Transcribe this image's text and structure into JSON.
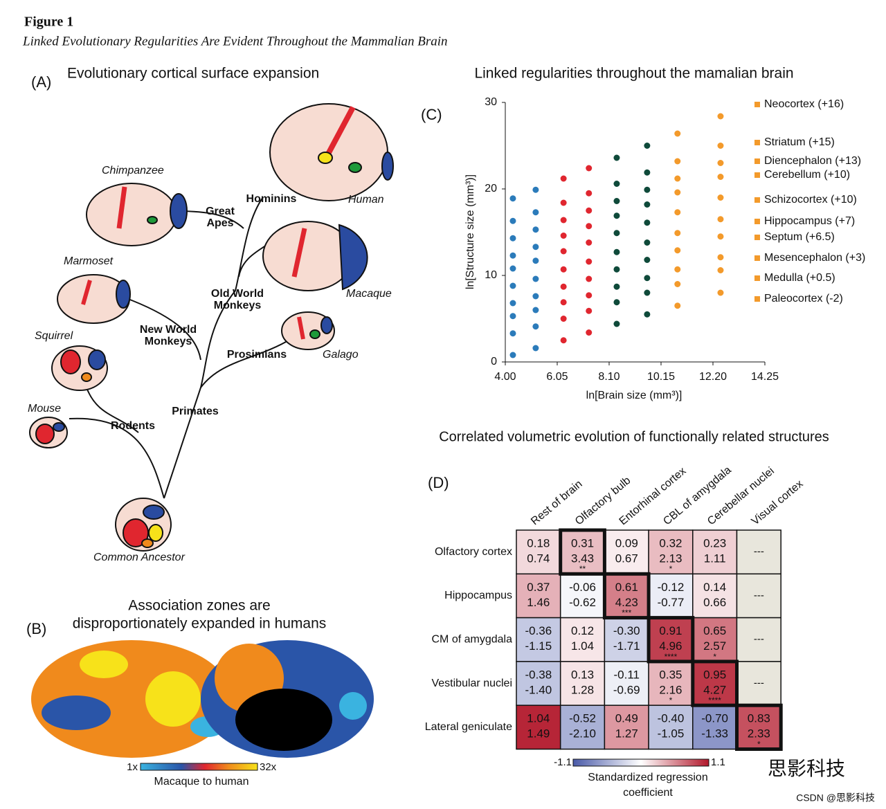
{
  "header": {
    "title": "Figure 1",
    "subtitle": "Linked Evolutionary Regularities Are Evident Throughout the Mammalian Brain"
  },
  "panel_a": {
    "label": "(A)",
    "title": "Evolutionary cortical surface expansion",
    "species": [
      "Chimpanzee",
      "Human",
      "Marmoset",
      "Macaque",
      "Squirrel",
      "Galago",
      "Mouse",
      "Common Ancestor"
    ],
    "clades": [
      [
        "Hominins"
      ],
      [
        "Great",
        "Apes"
      ],
      [
        "Old World",
        "Monkeys"
      ],
      [
        "New World",
        "Monkeys"
      ],
      [
        "Prosimians"
      ],
      [
        "Primates"
      ],
      [
        "Rodents"
      ]
    ]
  },
  "panel_b": {
    "label": "(B)",
    "title": [
      "Association zones are",
      "disproportionately expanded in humans"
    ],
    "scale_min": "1x",
    "scale_max": "32x",
    "scale_title": "Macaque to human"
  },
  "chart_data": {
    "type": "scatter",
    "label": "(C)",
    "title": "Linked regularities throughout the mamalian brain",
    "x_label": "ln[Brain size (mm³)]",
    "y_label": "ln[Structure size (mm³)]",
    "xlim": [
      4.0,
      14.25
    ],
    "ylim": [
      0,
      30
    ],
    "xticks": [
      {
        "value": 4,
        "label": "4.00"
      },
      {
        "value": 6.05,
        "label": "6.05"
      },
      {
        "value": 8.1,
        "label": "8.10"
      },
      {
        "value": 10.15,
        "label": "10.15"
      },
      {
        "value": 12.2,
        "label": "12.20"
      },
      {
        "value": 14.25,
        "label": "14.25"
      }
    ],
    "yticks": [
      0,
      10,
      20,
      30
    ],
    "x": [
      4.3,
      5.2,
      6.3,
      7.3,
      8.4,
      9.6,
      10.8,
      12.5
    ],
    "point_colors": [
      "#2b7bba",
      "#2b7bba",
      "#e0262f",
      "#e0262f",
      "#0f4a3a",
      "#0f4a3a",
      "#f39a2b",
      "#f39a2b"
    ],
    "series": [
      {
        "name": "Neocortex (+16)",
        "color": "#f39a2b",
        "values": [
          18.9,
          19.9,
          21.2,
          22.4,
          23.6,
          25.0,
          26.4,
          28.4
        ]
      },
      {
        "name": "Striatum (+15)",
        "color": "#f39a2b",
        "values": [
          16.3,
          17.3,
          18.4,
          19.5,
          20.6,
          21.9,
          23.2,
          25.0
        ]
      },
      {
        "name": "Diencephalon (+13)",
        "color": "#f39a2b",
        "values": [
          14.3,
          15.3,
          16.4,
          17.5,
          18.6,
          19.9,
          21.2,
          23.0
        ]
      },
      {
        "name": "Cerebellum (+10)",
        "color": "#f39a2b",
        "values": [
          12.3,
          13.3,
          14.6,
          15.7,
          16.9,
          18.2,
          19.6,
          21.4
        ]
      },
      {
        "name": "Schizocortex (+10)",
        "color": "#f39a2b",
        "values": [
          10.8,
          11.7,
          12.8,
          13.8,
          14.9,
          16.1,
          17.3,
          19.0
        ]
      },
      {
        "name": "Hippocampus (+7)",
        "color": "#f39a2b",
        "values": [
          8.8,
          9.6,
          10.7,
          11.6,
          12.7,
          13.8,
          14.9,
          16.5
        ]
      },
      {
        "name": "Septum (+6.5)",
        "color": "#f39a2b",
        "values": [
          6.8,
          7.6,
          8.7,
          9.6,
          10.7,
          11.8,
          12.9,
          14.5
        ]
      },
      {
        "name": "Mesencephalon (+3)",
        "color": "#f39a2b",
        "values": [
          5.3,
          6.0,
          6.9,
          7.7,
          8.7,
          9.7,
          10.7,
          12.1
        ]
      },
      {
        "name": "Medulla (+0.5)",
        "color": "#f39a2b",
        "values": [
          3.3,
          4.1,
          5.0,
          5.9,
          6.9,
          8.0,
          9.0,
          10.6
        ]
      },
      {
        "name": "Paleocortex (-2)",
        "color": "#f39a2b",
        "values": [
          0.8,
          1.6,
          2.5,
          3.4,
          4.4,
          5.5,
          6.5,
          8.0
        ]
      }
    ]
  },
  "panel_d": {
    "title": "Correlated volumetric evolution of functionally related structures",
    "label": "(D)",
    "columns": [
      "Rest of brain",
      "Olfactory bulb",
      "Entorhinal cortex",
      "CBL of amygdala",
      "Cerebellar nuclei",
      "Visual cortex"
    ],
    "rows": [
      {
        "label": "Olfactory cortex",
        "cells": [
          {
            "coef": "0.18",
            "t": "0.74"
          },
          {
            "coef": "0.31",
            "t": "3.43",
            "stars": "**"
          },
          {
            "coef": "0.09",
            "t": "0.67"
          },
          {
            "coef": "0.32",
            "t": "2.13",
            "stars": "*"
          },
          {
            "coef": "0.23",
            "t": "1.11"
          },
          {
            "text": "---"
          }
        ]
      },
      {
        "label": "Hippocampus",
        "cells": [
          {
            "coef": "0.37",
            "t": "1.46"
          },
          {
            "coef": "-0.06",
            "t": "-0.62"
          },
          {
            "coef": "0.61",
            "t": "4.23",
            "stars": "***"
          },
          {
            "coef": "-0.12",
            "t": "-0.77"
          },
          {
            "coef": "0.14",
            "t": "0.66"
          },
          {
            "text": "---"
          }
        ]
      },
      {
        "label": "CM of amygdala",
        "cells": [
          {
            "coef": "-0.36",
            "t": "-1.15"
          },
          {
            "coef": "0.12",
            "t": "1.04"
          },
          {
            "coef": "-0.30",
            "t": "-1.71"
          },
          {
            "coef": "0.91",
            "t": "4.96",
            "stars": "****"
          },
          {
            "coef": "0.65",
            "t": "2.57",
            "stars": "*"
          },
          {
            "text": "---"
          }
        ]
      },
      {
        "label": "Vestibular nuclei",
        "cells": [
          {
            "coef": "-0.38",
            "t": "-1.40"
          },
          {
            "coef": "0.13",
            "t": "1.28"
          },
          {
            "coef": "-0.11",
            "t": "-0.69"
          },
          {
            "coef": "0.35",
            "t": "2.16",
            "stars": "*"
          },
          {
            "coef": "0.95",
            "t": "4.27",
            "stars": "****"
          },
          {
            "text": "---"
          }
        ]
      },
      {
        "label": "Lateral geniculate",
        "cells": [
          {
            "coef": "1.04",
            "t": "1.49"
          },
          {
            "coef": "-0.52",
            "t": "-2.10"
          },
          {
            "coef": "0.49",
            "t": "1.27"
          },
          {
            "coef": "-0.40",
            "t": "-1.05"
          },
          {
            "coef": "-0.70",
            "t": "-1.33"
          },
          {
            "coef": "0.83",
            "t": "2.33",
            "stars": "*"
          }
        ]
      }
    ],
    "highlight": [
      [
        0,
        1
      ],
      [
        1,
        2
      ],
      [
        2,
        3
      ],
      [
        3,
        4
      ],
      [
        4,
        5
      ]
    ],
    "scale_min": "-1.1",
    "scale_max": "1.1",
    "scale_title": [
      "Standardized regression",
      "coefficient"
    ]
  },
  "watermark": {
    "logo": "思影科技",
    "credit": "CSDN @思影科技"
  }
}
